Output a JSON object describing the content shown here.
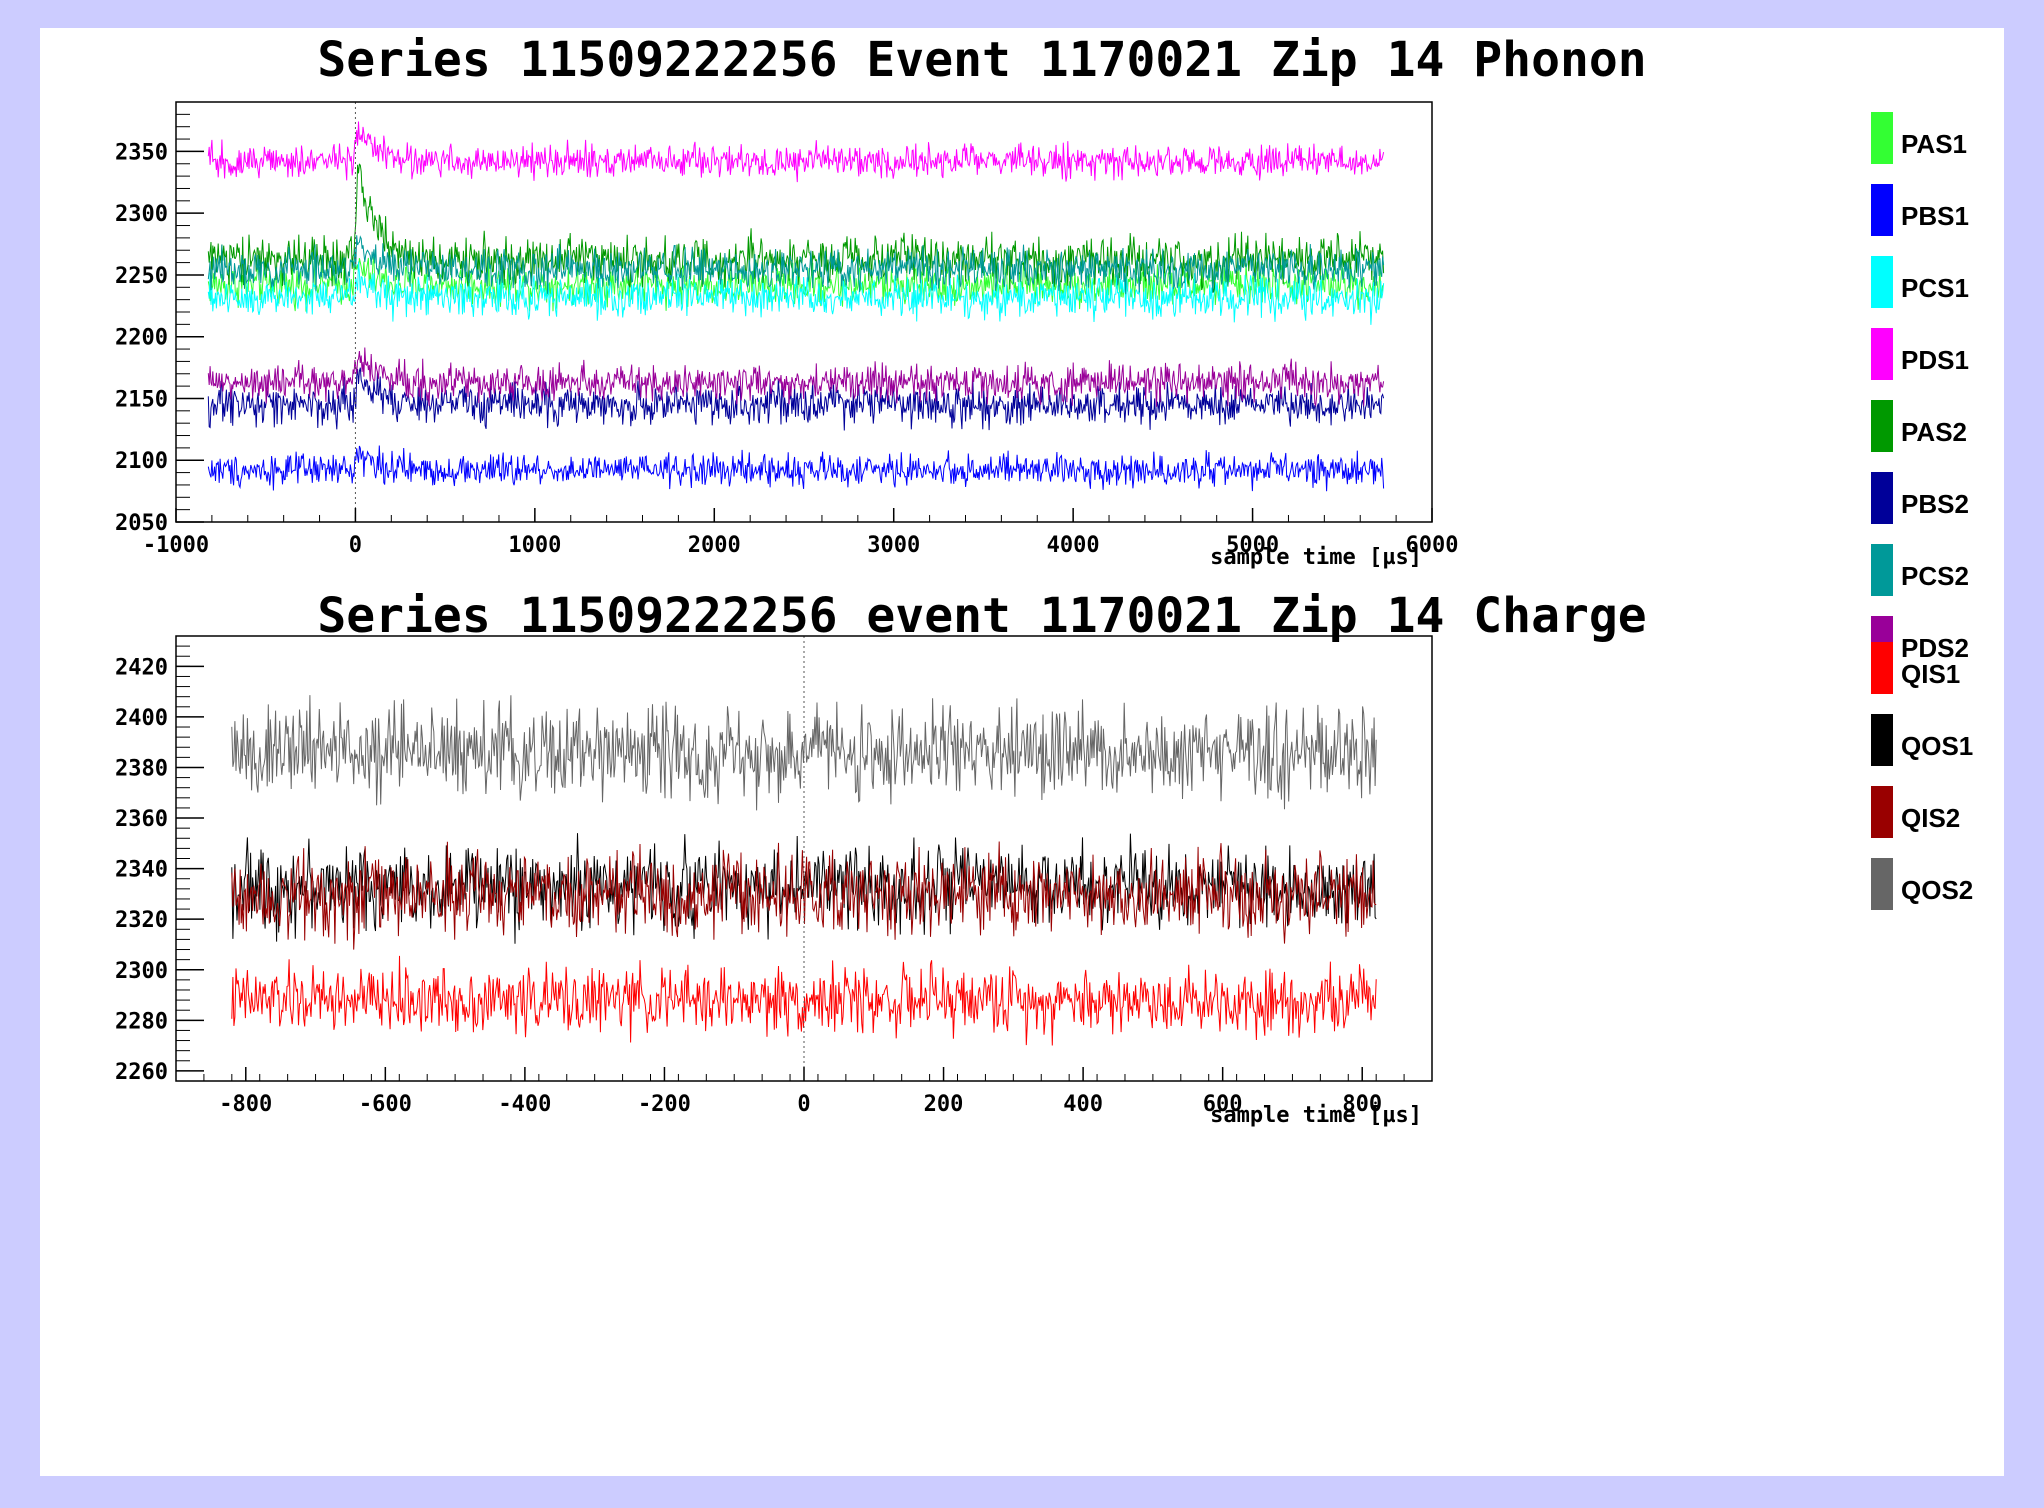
{
  "chart_data": [
    {
      "type": "line",
      "title": "Series 11509222256 Event 1170021 Zip 14 Phonon",
      "xlabel": "sample time [µs]",
      "ylabel": "",
      "xlim": [
        -1000,
        6000
      ],
      "ylim": [
        2050,
        2390
      ],
      "x_range": [
        -820,
        5730
      ],
      "marker_x": 0,
      "xticks": [
        -1000,
        0,
        1000,
        2000,
        3000,
        4000,
        5000,
        6000
      ],
      "yticks": [
        2050,
        2100,
        2150,
        2200,
        2250,
        2300,
        2350
      ],
      "legend_position": "right",
      "series": [
        {
          "name": "PAS1",
          "color": "#33ff33",
          "baseline": 2242,
          "noise": 10,
          "pulse": 15
        },
        {
          "name": "PBS1",
          "color": "#0000ff",
          "baseline": 2092,
          "noise": 8,
          "pulse": 15
        },
        {
          "name": "PCS1",
          "color": "#00ffff",
          "baseline": 2232,
          "noise": 10,
          "pulse": 15
        },
        {
          "name": "PDS1",
          "color": "#ff00ff",
          "baseline": 2342,
          "noise": 8,
          "pulse": 28
        },
        {
          "name": "PAS2",
          "color": "#009900",
          "baseline": 2262,
          "noise": 12,
          "pulse": 75
        },
        {
          "name": "PBS2",
          "color": "#000099",
          "baseline": 2145,
          "noise": 10,
          "pulse": 25
        },
        {
          "name": "PCS2",
          "color": "#009999",
          "baseline": 2255,
          "noise": 10,
          "pulse": 20
        },
        {
          "name": "PDS2",
          "color": "#990099",
          "baseline": 2163,
          "noise": 9,
          "pulse": 25
        }
      ]
    },
    {
      "type": "line",
      "title": "Series 11509222256 event 1170021 Zip 14 Charge",
      "xlabel": "sample time [µs]",
      "ylabel": "",
      "xlim": [
        -900,
        900
      ],
      "ylim": [
        2256,
        2432
      ],
      "x_range": [
        -820,
        820
      ],
      "marker_x": 0,
      "xticks": [
        -800,
        -600,
        -400,
        -200,
        0,
        200,
        400,
        600,
        800
      ],
      "yticks": [
        2260,
        2280,
        2300,
        2320,
        2340,
        2360,
        2380,
        2400,
        2420
      ],
      "legend_position": "right",
      "series": [
        {
          "name": "QIS1",
          "color": "#ff0000",
          "baseline": 2288,
          "noise": 8,
          "pulse": 0
        },
        {
          "name": "QOS1",
          "color": "#000000",
          "baseline": 2333,
          "noise": 10,
          "pulse": 0
        },
        {
          "name": "QIS2",
          "color": "#990000",
          "baseline": 2330,
          "noise": 10,
          "pulse": 0
        },
        {
          "name": "QOS2",
          "color": "#666666",
          "baseline": 2386,
          "noise": 11,
          "pulse": 0
        }
      ]
    }
  ]
}
